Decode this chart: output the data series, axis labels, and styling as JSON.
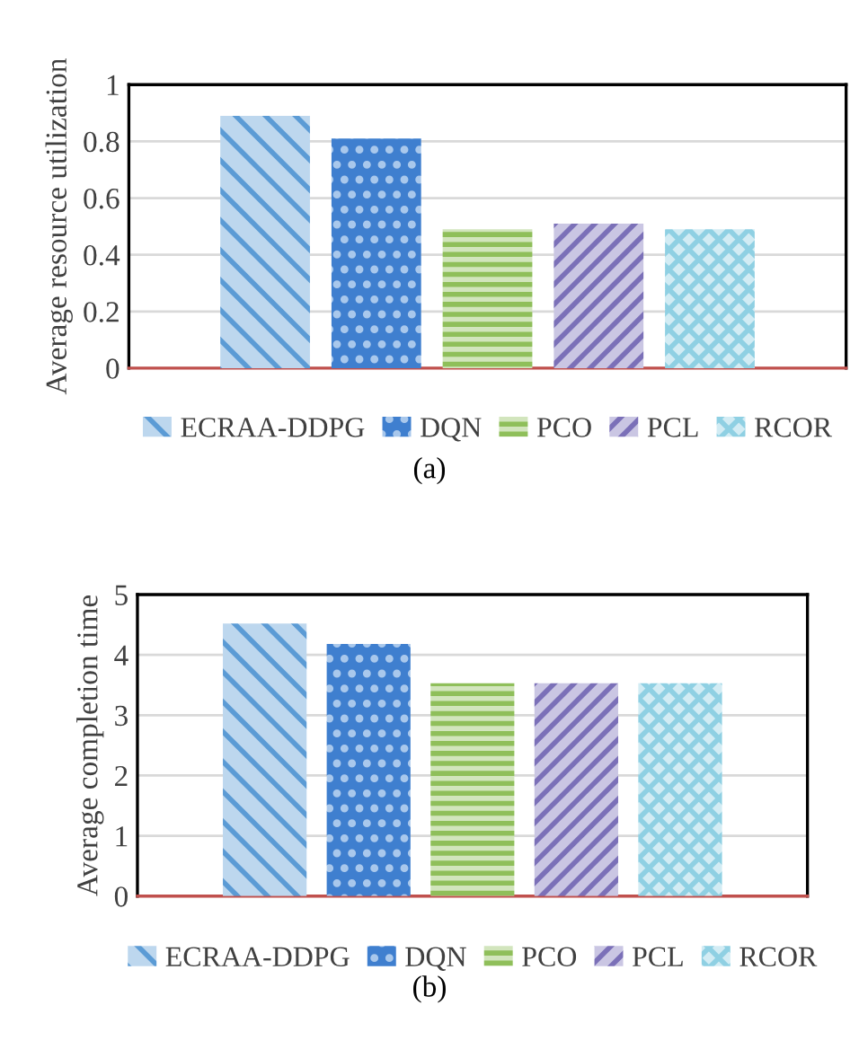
{
  "chart_data": [
    {
      "type": "bar",
      "ylabel": "Average resource utilization",
      "categories": [
        null
      ],
      "series": [
        {
          "name": "ECRAA-DDPG",
          "color": "#5b9bd5",
          "values": [
            0.89
          ]
        },
        {
          "name": "DQN",
          "color": "#3f7fcf",
          "values": [
            0.81
          ]
        },
        {
          "name": "PCO",
          "color": "#8fbf5a",
          "values": [
            0.49
          ]
        },
        {
          "name": "PCL",
          "color": "#7b70b8",
          "values": [
            0.51
          ]
        },
        {
          "name": "RCOR",
          "color": "#8fd0e3",
          "values": [
            0.49
          ]
        }
      ],
      "ylim": [
        0,
        1
      ],
      "yticks": [
        0,
        0.2,
        0.4,
        0.6,
        0.8,
        1
      ],
      "grid": "y",
      "legend": "bottom",
      "annotations": [
        "(a)"
      ]
    },
    {
      "type": "bar",
      "ylabel": "Average completion time",
      "categories": [
        null
      ],
      "series": [
        {
          "name": "ECRAA-DDPG",
          "color": "#5b9bd5",
          "values": [
            4.52
          ]
        },
        {
          "name": "DQN",
          "color": "#3f7fcf",
          "values": [
            4.18
          ]
        },
        {
          "name": "PCO",
          "color": "#8fbf5a",
          "values": [
            3.53
          ]
        },
        {
          "name": "PCL",
          "color": "#7b70b8",
          "values": [
            3.53
          ]
        },
        {
          "name": "RCOR",
          "color": "#8fd0e3",
          "values": [
            3.53
          ]
        }
      ],
      "ylim": [
        0,
        5
      ],
      "yticks": [
        0,
        1,
        2,
        3,
        4,
        5
      ],
      "grid": "y",
      "legend": "bottom",
      "annotations": [
        "(b)"
      ]
    }
  ]
}
